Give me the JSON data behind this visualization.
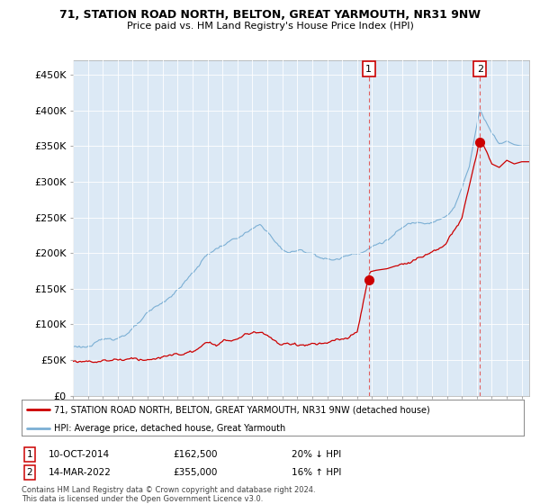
{
  "title": "71, STATION ROAD NORTH, BELTON, GREAT YARMOUTH, NR31 9NW",
  "subtitle": "Price paid vs. HM Land Registry's House Price Index (HPI)",
  "legend_line1": "71, STATION ROAD NORTH, BELTON, GREAT YARMOUTH, NR31 9NW (detached house)",
  "legend_line2": "HPI: Average price, detached house, Great Yarmouth",
  "sale1_label": "1",
  "sale2_label": "2",
  "sale1_date": "10-OCT-2014",
  "sale1_price": "£162,500",
  "sale1_hpi": "20% ↓ HPI",
  "sale2_date": "14-MAR-2022",
  "sale2_price": "£355,000",
  "sale2_hpi": "16% ↑ HPI",
  "footnote1": "Contains HM Land Registry data © Crown copyright and database right 2024.",
  "footnote2": "This data is licensed under the Open Government Licence v3.0.",
  "hpi_color": "#7bafd4",
  "price_color": "#cc0000",
  "plot_bg_color": "#dce9f5",
  "fig_bg_color": "#ffffff",
  "grid_color": "#ffffff",
  "vline_color": "#e06060",
  "ylim": [
    0,
    470000
  ],
  "yticks": [
    0,
    50000,
    100000,
    150000,
    200000,
    250000,
    300000,
    350000,
    400000,
    450000
  ],
  "ytick_labels": [
    "£0",
    "£50K",
    "£100K",
    "£150K",
    "£200K",
    "£250K",
    "£300K",
    "£350K",
    "£400K",
    "£450K"
  ],
  "sale1_x": 2014.78,
  "sale1_y": 162500,
  "sale2_x": 2022.21,
  "sale2_y": 355000,
  "xlim_start": 1995.0,
  "xlim_end": 2025.5
}
